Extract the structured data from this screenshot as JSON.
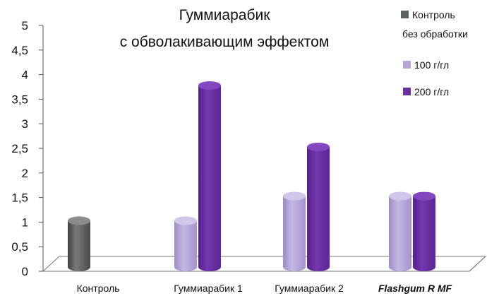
{
  "chart_data": {
    "type": "bar",
    "title_lines": [
      "Гуммиарабик",
      "с обволакивающим эффектом"
    ],
    "categories": [
      "Контроль",
      "Гуммиарабик 1",
      "Гуммиарабик 2",
      "Flashgum R MF"
    ],
    "ylim": [
      0,
      5
    ],
    "y_ticks": [
      "0",
      "0,5",
      "1",
      "1,5",
      "2",
      "2,5",
      "3",
      "3,5",
      "4",
      "4,5",
      "5"
    ],
    "series": [
      {
        "name": "Контроль без обработки",
        "legend_lines": [
          "Контроль",
          "без обработки"
        ],
        "color": "#5f6263",
        "values": [
          1,
          null,
          null,
          null
        ]
      },
      {
        "name": "100 г/гл",
        "legend_lines": [
          "100 г/гл"
        ],
        "color": "#b5a5d8",
        "values": [
          null,
          1,
          1.5,
          1.5
        ]
      },
      {
        "name": "200 г/гл",
        "legend_lines": [
          "200 г/гл"
        ],
        "color": "#6a2fa2",
        "values": [
          null,
          3.75,
          2.5,
          1.5
        ]
      }
    ],
    "highlight_category": "Flashgum R MF",
    "highlight_color": "#6a3fa0",
    "grid": false,
    "legend_position": "top-right"
  }
}
